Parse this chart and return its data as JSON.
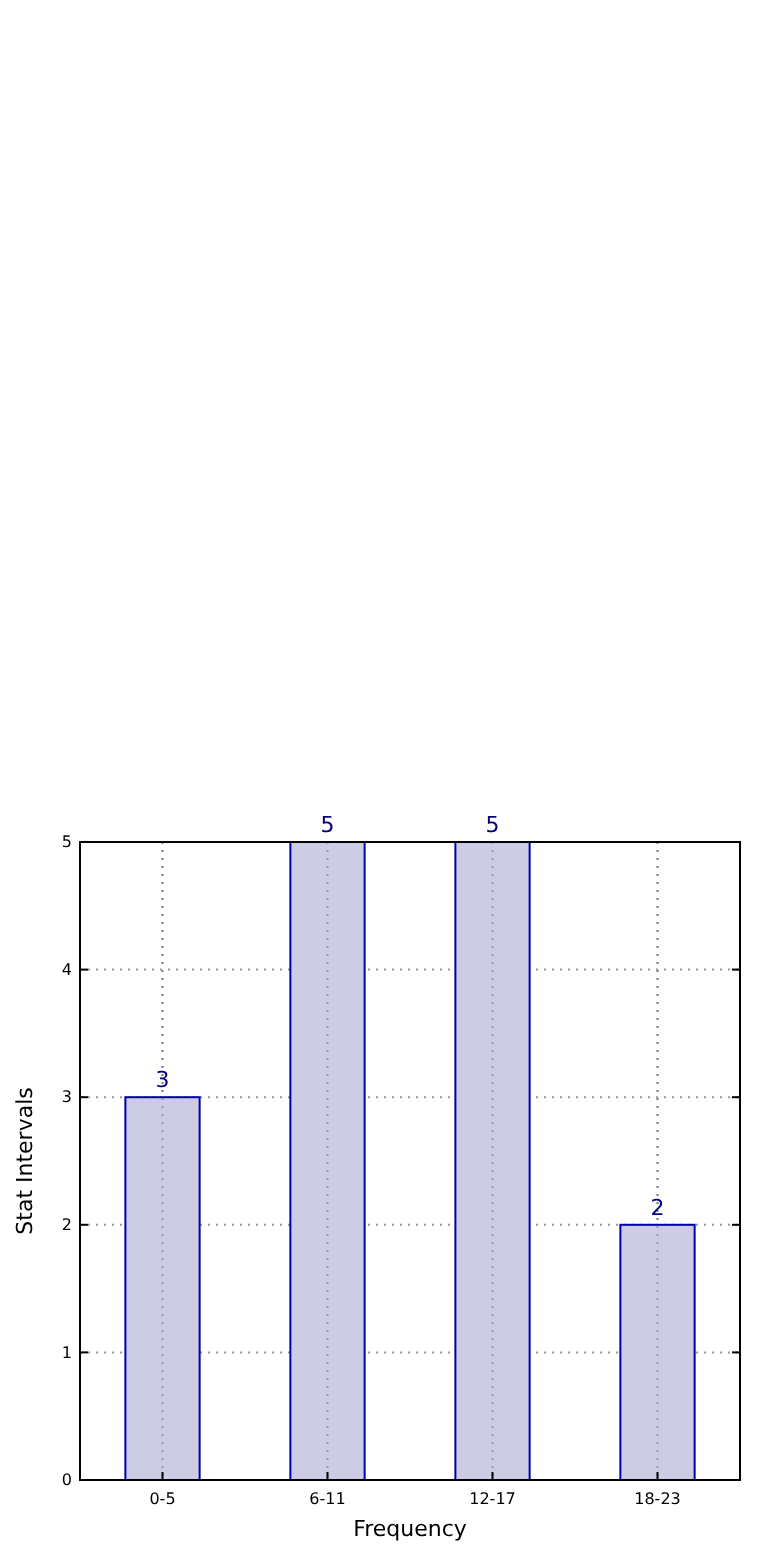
{
  "chart_data": {
    "type": "bar",
    "xlabel": "Frequency",
    "ylabel": "Stat Intervals",
    "categories": [
      "0-5",
      "6-11",
      "12-17",
      "18-23"
    ],
    "values": [
      3,
      5,
      5,
      2
    ],
    "color": "#ccccE5",
    "data_labels": true,
    "ylim": [
      0,
      5
    ],
    "yticks": [
      0,
      1,
      2,
      3,
      4,
      5
    ],
    "grid": true
  }
}
